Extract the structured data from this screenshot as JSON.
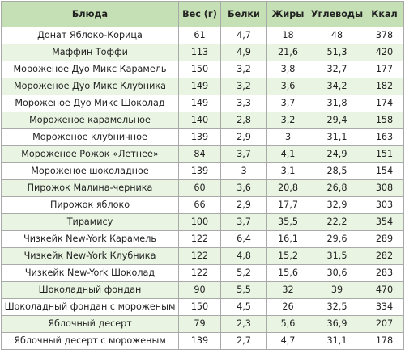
{
  "table": {
    "headers": [
      "Блюда",
      "Вес (г)",
      "Белки",
      "Жиры",
      "Углеводы",
      "Ккал"
    ],
    "rows": [
      [
        "Донат Яблоко-Корица",
        "61",
        "4,7",
        "18",
        "48",
        "378"
      ],
      [
        "Маффин Тоффи",
        "113",
        "4,9",
        "21,6",
        "51,3",
        "420"
      ],
      [
        "Мороженое Дуо Микс Карамель",
        "150",
        "3,2",
        "3,8",
        "32,7",
        "177"
      ],
      [
        "Мороженое Дуо Микс Клубника",
        "149",
        "3,2",
        "3,6",
        "34,2",
        "182"
      ],
      [
        "Мороженое Дуо Микс Шоколад",
        "149",
        "3,3",
        "3,7",
        "31,8",
        "174"
      ],
      [
        "Мороженое карамельное",
        "140",
        "2,8",
        "3,2",
        "29,4",
        "158"
      ],
      [
        "Мороженое клубничное",
        "139",
        "2,9",
        "3",
        "31,1",
        "163"
      ],
      [
        "Мороженое Рожок «Летнее»",
        "84",
        "3,7",
        "4,1",
        "24,9",
        "151"
      ],
      [
        "Мороженое шоколадное",
        "139",
        "3",
        "3,1",
        "28,5",
        "154"
      ],
      [
        "Пирожок Малина-черника",
        "60",
        "3,6",
        "20,8",
        "26,8",
        "308"
      ],
      [
        "Пирожок яблоко",
        "66",
        "2,9",
        "17,7",
        "32,9",
        "303"
      ],
      [
        "Тирамису",
        "100",
        "3,7",
        "35,5",
        "22,2",
        "354"
      ],
      [
        "Чизкейк New-York Карамель",
        "122",
        "6,4",
        "16,1",
        "29,6",
        "289"
      ],
      [
        "Чизкейк New-York Клубника",
        "122",
        "4,8",
        "15,2",
        "31,5",
        "282"
      ],
      [
        "Чизкейк New-York Шоколад",
        "122",
        "5,2",
        "15,6",
        "30,6",
        "283"
      ],
      [
        "Шоколадный фондан",
        "90",
        "5,5",
        "32",
        "39",
        "470"
      ],
      [
        "Шоколадный фондан с мороженым",
        "150",
        "4,5",
        "26",
        "32,5",
        "334"
      ],
      [
        "Яблочный десерт",
        "79",
        "2,3",
        "5,6",
        "36,9",
        "207"
      ],
      [
        "Яблочный десерт с мороженым",
        "139",
        "2,7",
        "4,7",
        "31,1",
        "178"
      ]
    ]
  },
  "colors": {
    "header_bg": "#c5e0b4",
    "stripe_bg": "#e9f4e2",
    "border": "#a9a9a9"
  }
}
